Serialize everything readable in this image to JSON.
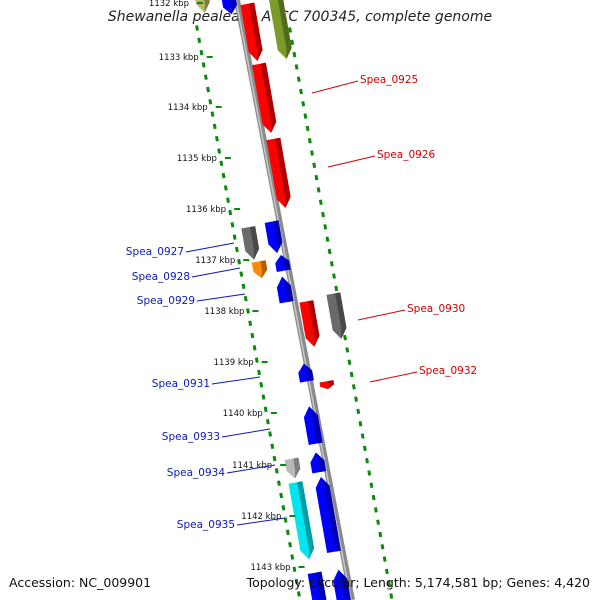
{
  "header": {
    "title": "Shewanella pealeana ATCC 700345, complete genome"
  },
  "footer": {
    "accession_label": "Accession:",
    "accession": "NC_009901",
    "topology_label": "Topology:",
    "topology": "circular",
    "length_label": "Length:",
    "length": "5,174,581 bp",
    "genes_label": "Genes:",
    "genes": "4,420"
  },
  "ruler": {
    "unit": "kbp",
    "ticks": [
      "1132 kbp",
      "1133 kbp",
      "1134 kbp",
      "1135 kbp",
      "1136 kbp",
      "1137 kbp",
      "1138 kbp",
      "1139 kbp",
      "1140 kbp",
      "1141 kbp",
      "1142 kbp",
      "1143 kbp"
    ]
  },
  "genes": {
    "forward_labels": [
      "Spea_0925",
      "Spea_0926",
      "Spea_0930",
      "Spea_0932"
    ],
    "reverse_labels": [
      "Spea_0927",
      "Spea_0928",
      "Spea_0929",
      "Spea_0931",
      "Spea_0933",
      "Spea_0934",
      "Spea_0935"
    ]
  },
  "colors": {
    "forward_label": "#d40000",
    "reverse_label": "#0a1ab4",
    "red": "#ff0000",
    "blue": "#0000ff",
    "olive": "#7a9a2a",
    "pink": "#ffb0b8",
    "gray": "#6a6a6a",
    "light_gray": "#b8b8b8",
    "orange": "#ff8c00",
    "cyan": "#00e5ee",
    "khaki": "#b8b860",
    "backbone": "#8a8a8a",
    "dotted_track": "#0a8a0a"
  }
}
